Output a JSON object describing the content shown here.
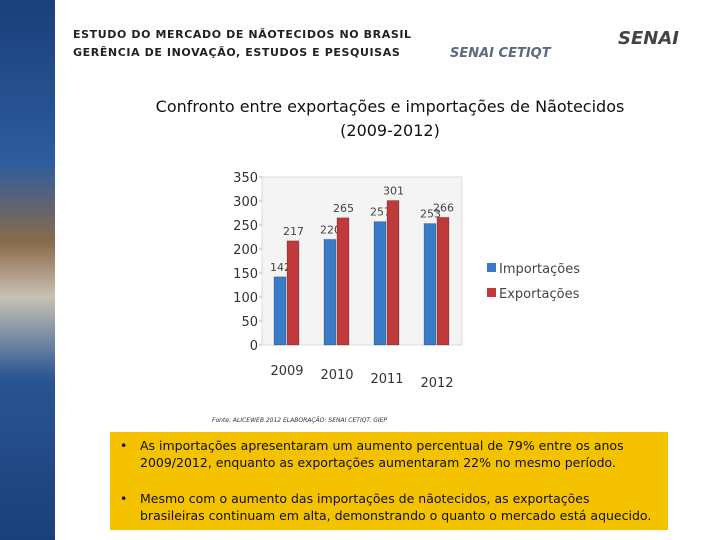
{
  "header": {
    "line1": "ESTUDO DO MERCADO DE NÃOTECIDOS NO BRASIL",
    "line2": "GERÊNCIA DE INOVAÇÃO, ESTUDOS E PESQUISAS",
    "logo1": "SENAI CETIQT",
    "logo2": "SENAI"
  },
  "chart_data": {
    "type": "bar",
    "title": "Confronto entre exportações e importações de Nãotecidos",
    "subtitle": "(2009-2012)",
    "categories": [
      "2009",
      "2010",
      "2011",
      "2012"
    ],
    "series": [
      {
        "name": "Importações",
        "color": "#3a7bc8",
        "values": [
          142,
          220,
          257,
          253
        ]
      },
      {
        "name": "Exportações",
        "color": "#c0393b",
        "values": [
          217,
          265,
          301,
          266
        ]
      }
    ],
    "ylim": [
      0,
      350
    ],
    "yticks": [
      0,
      50,
      100,
      150,
      200,
      250,
      300,
      350
    ],
    "grid": false,
    "legend": "right",
    "source": "Fonte: ALICEWEB 2012 ELABORAÇÃO: SENAI CETIQT. GIEP"
  },
  "bullets": [
    "As importações apresentaram um aumento percentual de 79% entre os anos 2009/2012, enquanto as exportações aumentaram  22% no mesmo período.",
    "Mesmo com o aumento das importações de nãotecidos, as exportações  brasileiras continuam em alta, demonstrando o quanto o mercado está aquecido."
  ]
}
